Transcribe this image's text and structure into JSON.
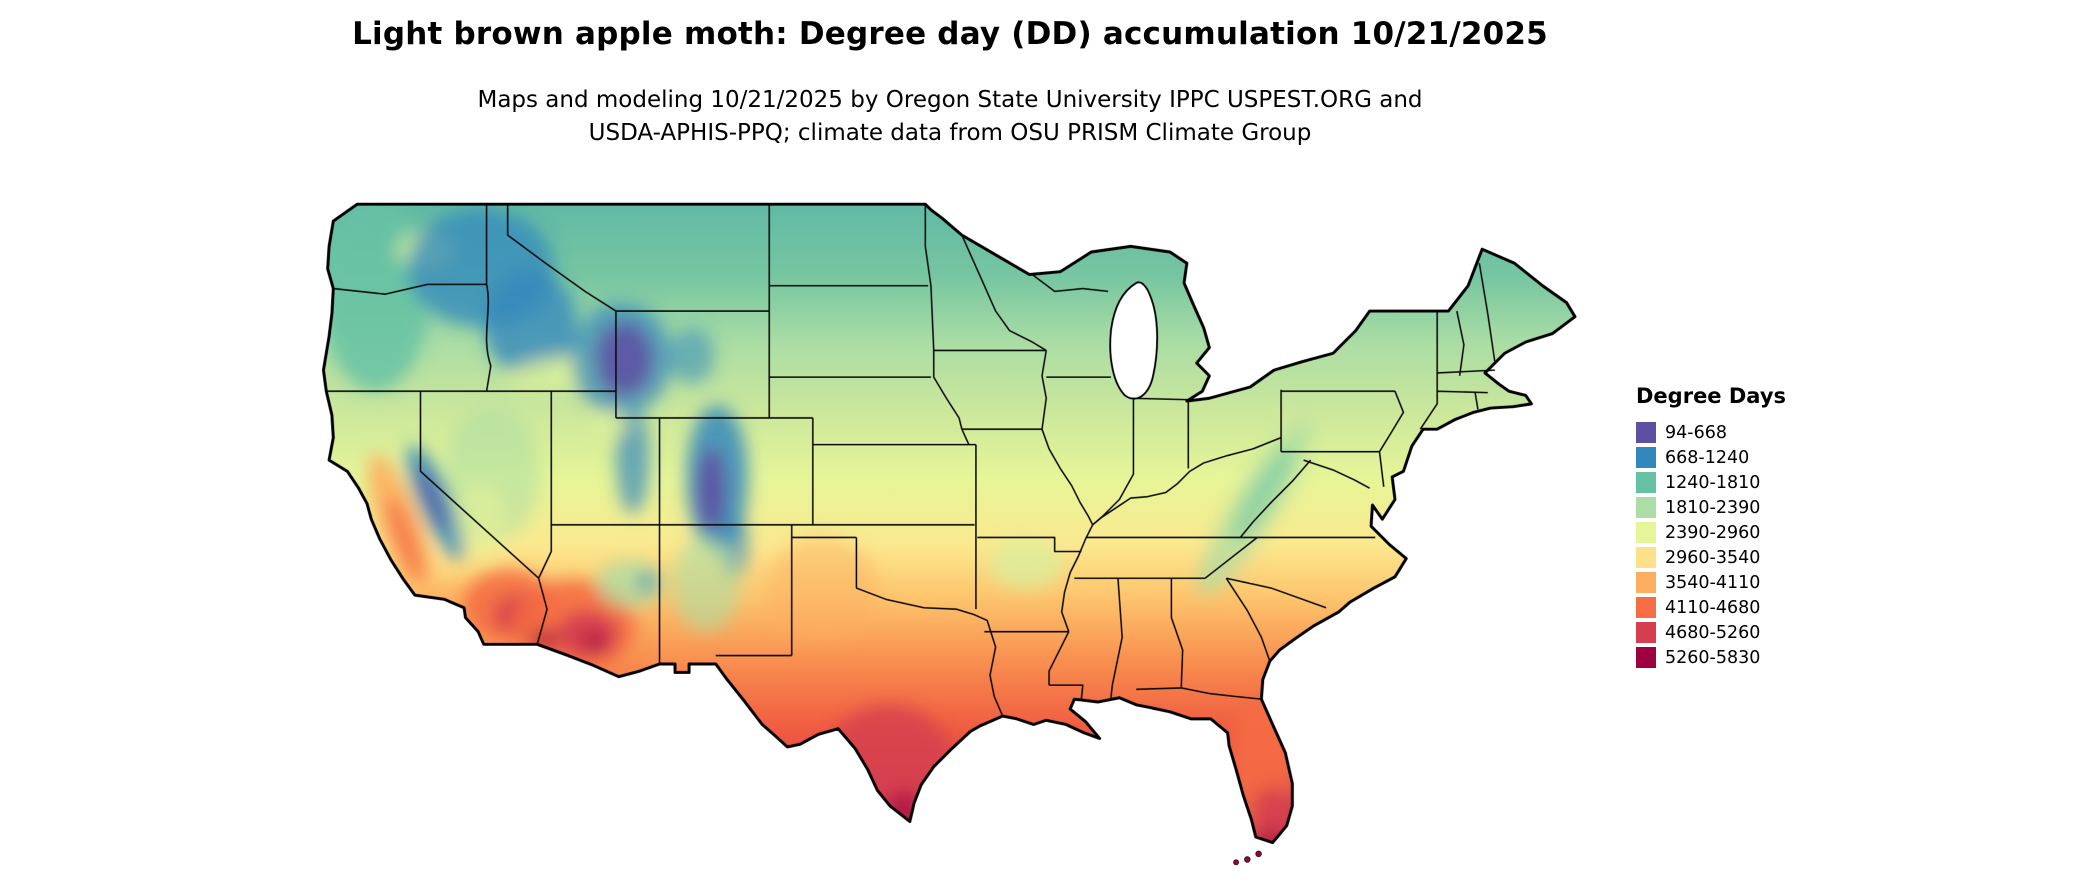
{
  "header": {
    "title": "Light brown apple moth: Degree day (DD) accumulation 10/21/2025",
    "subtitle_line1": "Maps and modeling 10/21/2025 by Oregon State University IPPC USPEST.ORG and",
    "subtitle_line2": "USDA-APHIS-PPQ; climate data from OSU PRISM Climate Group"
  },
  "map": {
    "region": "Continental United States",
    "kind": "degree-day accumulation raster map with state boundaries"
  },
  "legend": {
    "title": "Degree Days",
    "entries": [
      {
        "label": "94-668",
        "color": "#5e4fa2"
      },
      {
        "label": "668-1240",
        "color": "#3288bd"
      },
      {
        "label": "1240-1810",
        "color": "#66c2a5"
      },
      {
        "label": "1810-2390",
        "color": "#abdda4"
      },
      {
        "label": "2390-2960",
        "color": "#e6f598"
      },
      {
        "label": "2960-3540",
        "color": "#fee08b"
      },
      {
        "label": "3540-4110",
        "color": "#fdae61"
      },
      {
        "label": "4110-4680",
        "color": "#f46d43"
      },
      {
        "label": "4680-5260",
        "color": "#d53e4f"
      },
      {
        "label": "5260-5830",
        "color": "#9e0142"
      }
    ]
  }
}
